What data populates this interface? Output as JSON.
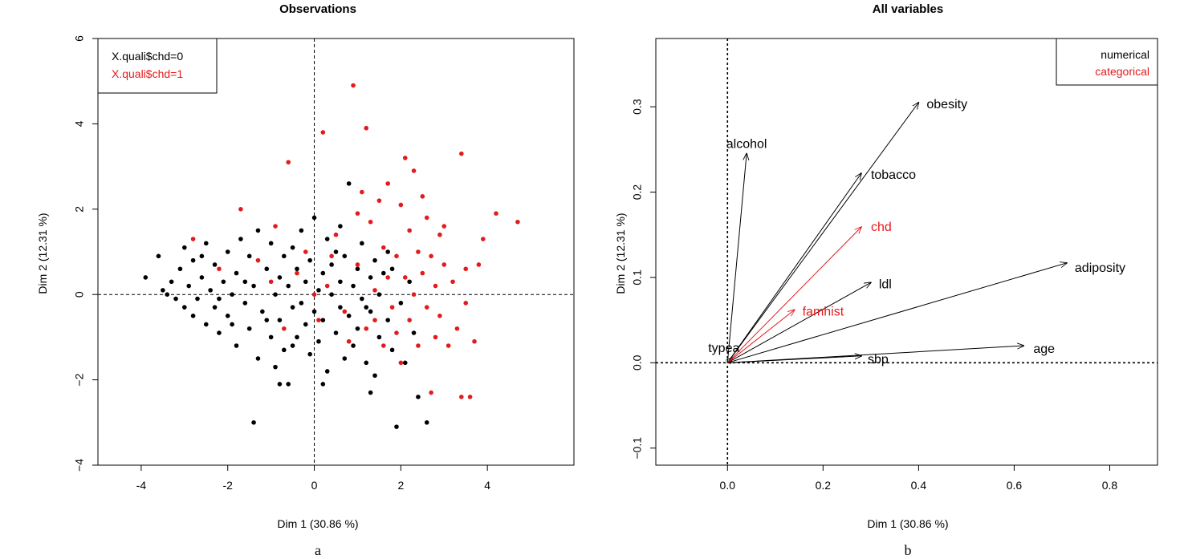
{
  "panels": {
    "a": {
      "letter": "a",
      "title": "Observations",
      "xlabel": "Dim 1 (30.86 %)",
      "ylabel": "Dim 2 (12.31 %)",
      "legend": {
        "placement": "top-left",
        "entries": [
          {
            "label": "X.quali$chd=0",
            "color": "#000000"
          },
          {
            "label": "X.quali$chd=1",
            "color": "#e41a1c"
          }
        ]
      }
    },
    "b": {
      "letter": "b",
      "title": "All variables",
      "xlabel": "Dim 1 (30.86 %)",
      "ylabel": "Dim 2 (12.31 %)",
      "legend": {
        "placement": "top-right",
        "entries": [
          {
            "label": "numerical",
            "color": "#000000"
          },
          {
            "label": "categorical",
            "color": "#e41a1c"
          }
        ]
      }
    }
  },
  "chart_data": [
    {
      "type": "scatter",
      "title": "Observations",
      "xlabel": "Dim 1 (30.86 %)",
      "ylabel": "Dim 2 (12.31 %)",
      "xlim": [
        -5,
        6
      ],
      "ylim": [
        -4,
        6
      ],
      "xticks": [
        "-4",
        "-2",
        "0",
        "2",
        "4"
      ],
      "yticks": [
        "-4",
        "-2",
        "0",
        "2",
        "4",
        "6"
      ],
      "reference_lines": {
        "x": 0,
        "y": 0
      },
      "series": [
        {
          "name": "X.quali$chd=0",
          "color": "#000000",
          "points": [
            [
              -3.9,
              0.4
            ],
            [
              -3.6,
              0.9
            ],
            [
              -3.5,
              0.1
            ],
            [
              -3.4,
              0.0
            ],
            [
              -3.3,
              0.3
            ],
            [
              -3.2,
              -0.1
            ],
            [
              -3.1,
              0.6
            ],
            [
              -3.0,
              -0.3
            ],
            [
              -3.0,
              1.1
            ],
            [
              -2.9,
              0.2
            ],
            [
              -2.8,
              -0.5
            ],
            [
              -2.8,
              0.8
            ],
            [
              -2.7,
              -0.1
            ],
            [
              -2.6,
              0.4
            ],
            [
              -2.5,
              -0.7
            ],
            [
              -2.5,
              1.2
            ],
            [
              -2.4,
              0.1
            ],
            [
              -2.3,
              -0.3
            ],
            [
              -2.3,
              0.7
            ],
            [
              -2.2,
              -0.9
            ],
            [
              -2.1,
              0.3
            ],
            [
              -2.0,
              1.0
            ],
            [
              -2.0,
              -0.5
            ],
            [
              -1.9,
              0.0
            ],
            [
              -1.8,
              -1.2
            ],
            [
              -1.8,
              0.5
            ],
            [
              -1.7,
              1.3
            ],
            [
              -1.6,
              -0.2
            ],
            [
              -1.5,
              0.9
            ],
            [
              -1.5,
              -0.8
            ],
            [
              -1.4,
              0.2
            ],
            [
              -1.3,
              -1.5
            ],
            [
              -1.3,
              1.5
            ],
            [
              -1.2,
              -0.4
            ],
            [
              -1.1,
              0.6
            ],
            [
              -1.0,
              -1.0
            ],
            [
              -1.0,
              1.2
            ],
            [
              -0.9,
              0.0
            ],
            [
              -0.9,
              -1.7
            ],
            [
              -0.8,
              0.4
            ],
            [
              -0.8,
              -0.6
            ],
            [
              -0.7,
              0.9
            ],
            [
              -0.7,
              -1.3
            ],
            [
              -0.6,
              0.2
            ],
            [
              -0.6,
              -2.1
            ],
            [
              -0.5,
              1.1
            ],
            [
              -0.5,
              -0.3
            ],
            [
              -0.4,
              0.6
            ],
            [
              -0.4,
              -1.0
            ],
            [
              -0.3,
              -0.2
            ],
            [
              -0.3,
              1.5
            ],
            [
              -0.2,
              -0.7
            ],
            [
              -0.2,
              0.3
            ],
            [
              -0.1,
              -1.4
            ],
            [
              -0.1,
              0.8
            ],
            [
              0.0,
              -0.4
            ],
            [
              0.0,
              1.8
            ],
            [
              0.1,
              0.1
            ],
            [
              0.1,
              -1.1
            ],
            [
              0.2,
              0.5
            ],
            [
              0.2,
              -0.6
            ],
            [
              0.3,
              1.3
            ],
            [
              0.3,
              -1.8
            ],
            [
              0.4,
              0.0
            ],
            [
              0.4,
              0.7
            ],
            [
              0.5,
              -0.9
            ],
            [
              0.5,
              1.0
            ],
            [
              0.6,
              -0.3
            ],
            [
              0.6,
              0.3
            ],
            [
              0.7,
              -1.5
            ],
            [
              0.7,
              0.9
            ],
            [
              0.8,
              -0.5
            ],
            [
              0.8,
              2.6
            ],
            [
              0.9,
              0.2
            ],
            [
              0.9,
              -1.2
            ],
            [
              1.0,
              0.6
            ],
            [
              1.0,
              -0.8
            ],
            [
              1.1,
              -0.1
            ],
            [
              1.1,
              1.2
            ],
            [
              1.2,
              -1.6
            ],
            [
              1.3,
              0.4
            ],
            [
              1.3,
              -0.4
            ],
            [
              1.4,
              0.8
            ],
            [
              1.4,
              -1.9
            ],
            [
              1.5,
              0.0
            ],
            [
              1.5,
              -1.0
            ],
            [
              1.6,
              0.5
            ],
            [
              1.7,
              -0.6
            ],
            [
              1.7,
              1.0
            ],
            [
              1.8,
              -1.3
            ],
            [
              1.9,
              -3.1
            ],
            [
              2.0,
              -0.2
            ],
            [
              2.1,
              -1.6
            ],
            [
              2.2,
              0.3
            ],
            [
              2.3,
              -0.9
            ],
            [
              2.4,
              -2.4
            ],
            [
              2.6,
              -3.0
            ],
            [
              -1.4,
              -3.0
            ],
            [
              -0.8,
              -2.1
            ],
            [
              1.3,
              -2.3
            ],
            [
              -2.6,
              0.9
            ],
            [
              -2.2,
              -0.1
            ],
            [
              -1.9,
              -0.7
            ],
            [
              -1.6,
              0.3
            ],
            [
              -1.1,
              -0.6
            ],
            [
              -0.5,
              -1.2
            ],
            [
              0.2,
              -2.1
            ],
            [
              0.6,
              1.6
            ],
            [
              1.2,
              -0.3
            ],
            [
              1.8,
              0.6
            ]
          ]
        },
        {
          "name": "X.quali$chd=1",
          "color": "#e41a1c",
          "points": [
            [
              -2.8,
              1.3
            ],
            [
              -2.2,
              0.6
            ],
            [
              -1.7,
              2.0
            ],
            [
              -1.3,
              0.8
            ],
            [
              -0.9,
              1.6
            ],
            [
              -0.6,
              3.1
            ],
            [
              -0.4,
              0.5
            ],
            [
              -0.2,
              1.0
            ],
            [
              0.0,
              0.0
            ],
            [
              0.2,
              3.8
            ],
            [
              0.3,
              0.2
            ],
            [
              0.5,
              1.4
            ],
            [
              0.7,
              -0.4
            ],
            [
              0.9,
              4.9
            ],
            [
              1.0,
              0.7
            ],
            [
              1.1,
              2.4
            ],
            [
              1.2,
              3.9
            ],
            [
              1.2,
              -0.8
            ],
            [
              1.3,
              1.7
            ],
            [
              1.4,
              0.1
            ],
            [
              1.5,
              2.2
            ],
            [
              1.6,
              -1.2
            ],
            [
              1.6,
              1.1
            ],
            [
              1.7,
              2.6
            ],
            [
              1.8,
              -0.3
            ],
            [
              1.9,
              0.9
            ],
            [
              2.0,
              2.1
            ],
            [
              2.0,
              -1.6
            ],
            [
              2.1,
              3.2
            ],
            [
              2.1,
              0.4
            ],
            [
              2.2,
              1.5
            ],
            [
              2.2,
              -0.6
            ],
            [
              2.3,
              2.9
            ],
            [
              2.3,
              0.0
            ],
            [
              2.4,
              1.0
            ],
            [
              2.4,
              -1.2
            ],
            [
              2.5,
              2.3
            ],
            [
              2.5,
              0.5
            ],
            [
              2.6,
              -0.3
            ],
            [
              2.6,
              1.8
            ],
            [
              2.7,
              -2.3
            ],
            [
              2.7,
              0.9
            ],
            [
              2.8,
              0.2
            ],
            [
              2.8,
              -1.0
            ],
            [
              2.9,
              1.4
            ],
            [
              2.9,
              -0.5
            ],
            [
              3.0,
              0.7
            ],
            [
              3.0,
              1.6
            ],
            [
              3.1,
              -1.2
            ],
            [
              3.2,
              0.3
            ],
            [
              3.3,
              -0.8
            ],
            [
              3.4,
              3.3
            ],
            [
              3.4,
              -2.4
            ],
            [
              3.5,
              -0.2
            ],
            [
              3.5,
              0.6
            ],
            [
              3.6,
              -2.4
            ],
            [
              3.7,
              -1.1
            ],
            [
              3.8,
              0.7
            ],
            [
              3.9,
              1.3
            ],
            [
              4.2,
              1.9
            ],
            [
              4.7,
              1.7
            ],
            [
              -1.0,
              0.3
            ],
            [
              -0.7,
              -0.8
            ],
            [
              0.1,
              -0.6
            ],
            [
              0.4,
              0.9
            ],
            [
              0.8,
              -1.1
            ],
            [
              1.0,
              1.9
            ],
            [
              1.4,
              -0.6
            ],
            [
              1.7,
              0.4
            ],
            [
              1.9,
              -0.9
            ]
          ]
        }
      ]
    },
    {
      "type": "vector",
      "title": "All variables",
      "xlabel": "Dim 1 (30.86 %)",
      "ylabel": "Dim 2 (12.31 %)",
      "xlim": [
        -0.15,
        0.9
      ],
      "ylim": [
        -0.12,
        0.38
      ],
      "xticks": [
        "0.0",
        "0.2",
        "0.4",
        "0.6",
        "0.8"
      ],
      "yticks": [
        "-0.1",
        "0.0",
        "0.1",
        "0.2",
        "0.3"
      ],
      "reference_lines": {
        "x": 0,
        "y": 0
      },
      "series": [
        {
          "name": "numerical",
          "color": "#000000",
          "vectors": [
            {
              "label": "obesity",
              "x": 0.4,
              "y": 0.305
            },
            {
              "label": "alcohol",
              "x": 0.04,
              "y": 0.245
            },
            {
              "label": "tobacco",
              "x": 0.28,
              "y": 0.222
            },
            {
              "label": "adiposity",
              "x": 0.71,
              "y": 0.117
            },
            {
              "label": "ldl",
              "x": 0.3,
              "y": 0.094
            },
            {
              "label": "age",
              "x": 0.62,
              "y": 0.02
            },
            {
              "label": "sbp",
              "x": 0.28,
              "y": 0.008
            },
            {
              "label": "typea",
              "x": 0.01,
              "y": 0.006
            }
          ]
        },
        {
          "name": "categorical",
          "color": "#e41a1c",
          "vectors": [
            {
              "label": "chd",
              "x": 0.28,
              "y": 0.159
            },
            {
              "label": "famhist",
              "x": 0.14,
              "y": 0.062
            }
          ]
        }
      ]
    }
  ]
}
